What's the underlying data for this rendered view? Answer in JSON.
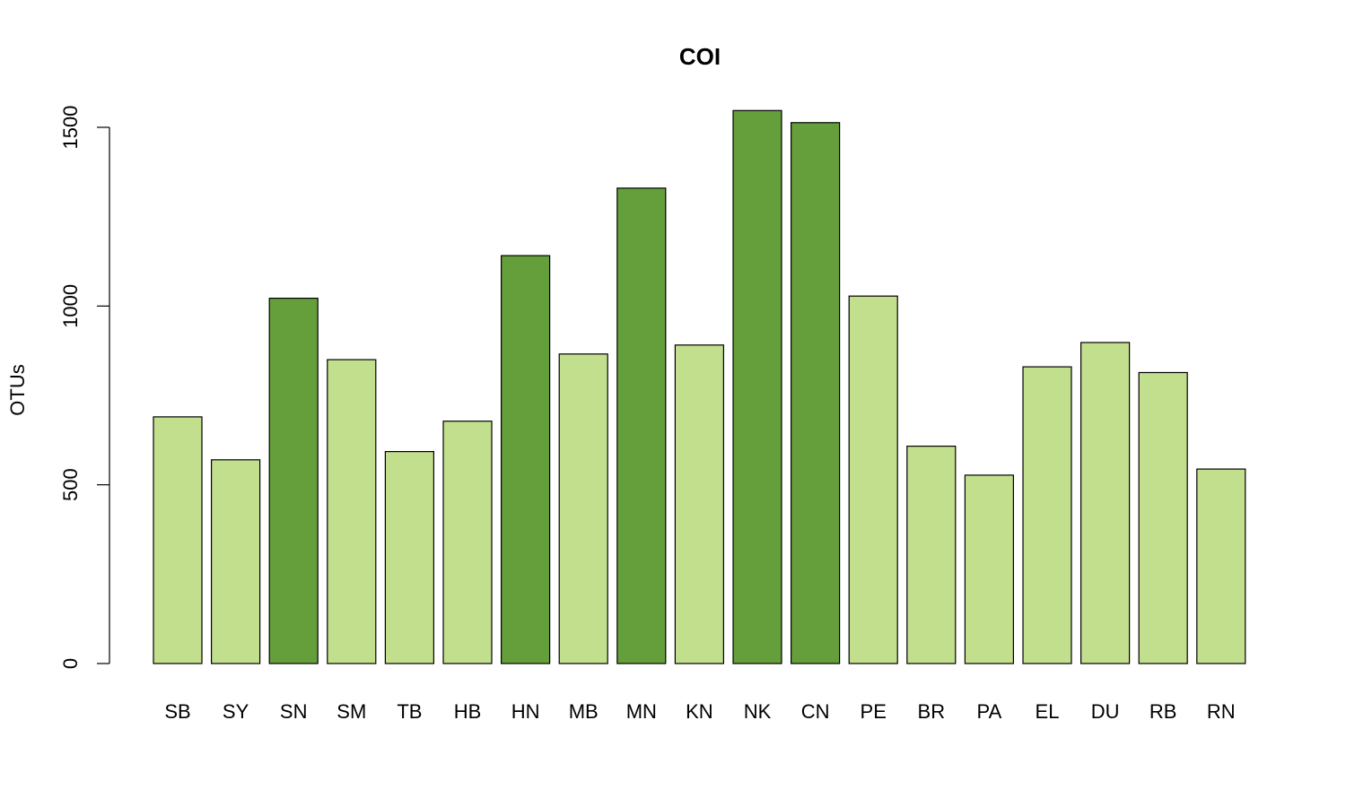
{
  "chart_data": {
    "type": "bar",
    "title": "COI",
    "xlabel": "",
    "ylabel": "OTUs",
    "ylim": [
      0,
      1550
    ],
    "yticks": [
      0,
      500,
      1000,
      1500
    ],
    "grid": false,
    "categories": [
      "SB",
      "SY",
      "SN",
      "SM",
      "TB",
      "HB",
      "HN",
      "MB",
      "MN",
      "KN",
      "NK",
      "CN",
      "PE",
      "BR",
      "PA",
      "EL",
      "DU",
      "RB",
      "RN"
    ],
    "values": [
      690,
      570,
      1022,
      850,
      593,
      678,
      1141,
      866,
      1330,
      891,
      1547,
      1513,
      1028,
      608,
      527,
      830,
      898,
      814,
      544
    ],
    "highlighted": [
      false,
      false,
      true,
      false,
      false,
      false,
      true,
      false,
      true,
      false,
      true,
      true,
      false,
      false,
      false,
      false,
      false,
      false,
      false
    ],
    "colors": {
      "normal": "#c2df8e",
      "highlight": "#659f3b",
      "stroke": "#000000"
    }
  }
}
